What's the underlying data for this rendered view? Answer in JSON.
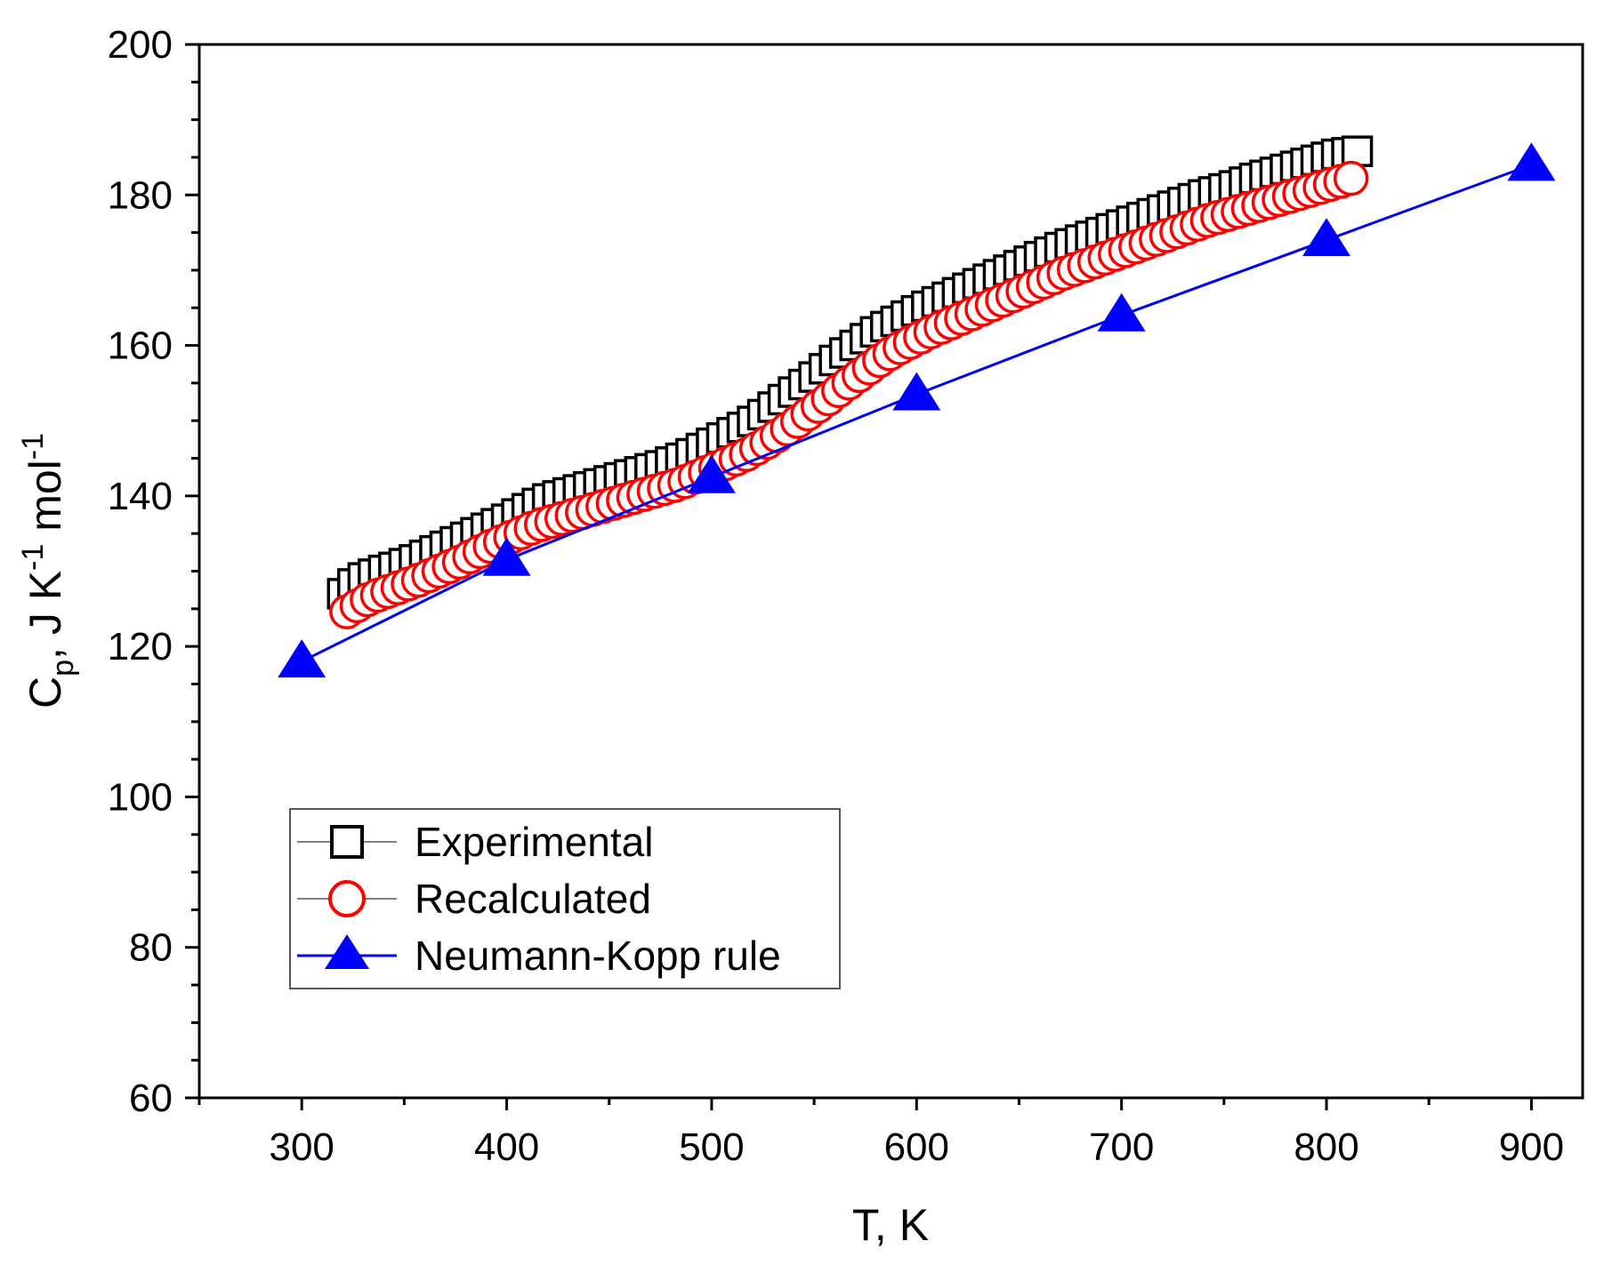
{
  "chart_data": {
    "type": "line",
    "title": "",
    "xlabel": "T, K",
    "ylabel": {
      "base": "C",
      "subscript": "p",
      "rest1": ", J K",
      "sup1": "-1",
      "rest2": " mol",
      "sup2": "-1"
    },
    "xlim": [
      250,
      925
    ],
    "ylim": [
      60,
      200
    ],
    "x_ticks": [
      300,
      400,
      500,
      600,
      700,
      800,
      900
    ],
    "y_ticks": [
      60,
      80,
      100,
      120,
      140,
      160,
      180,
      200
    ],
    "x_tick_labels": [
      "300",
      "400",
      "500",
      "600",
      "700",
      "800",
      "900"
    ],
    "y_tick_labels": [
      "60",
      "80",
      "100",
      "120",
      "140",
      "160",
      "180",
      "200"
    ],
    "grid": false,
    "legend_position": "lower-left",
    "series": [
      {
        "name": "Experimental",
        "marker": "square",
        "color": "#000000",
        "line_color": "#808080",
        "x": [
          320,
          325,
          330,
          335,
          340,
          345,
          350,
          355,
          360,
          365,
          370,
          375,
          380,
          385,
          390,
          395,
          400,
          405,
          410,
          415,
          420,
          425,
          430,
          435,
          440,
          445,
          450,
          455,
          460,
          465,
          470,
          475,
          480,
          485,
          490,
          495,
          500,
          505,
          510,
          515,
          520,
          525,
          530,
          535,
          540,
          545,
          550,
          555,
          560,
          565,
          570,
          575,
          580,
          585,
          590,
          595,
          600,
          605,
          610,
          615,
          620,
          625,
          630,
          635,
          640,
          645,
          650,
          655,
          660,
          665,
          670,
          675,
          680,
          685,
          690,
          695,
          700,
          705,
          710,
          715,
          720,
          725,
          730,
          735,
          740,
          745,
          750,
          755,
          760,
          765,
          770,
          775,
          780,
          785,
          790,
          795,
          800,
          805,
          810,
          815
        ],
        "y": [
          127,
          128.3,
          129.1,
          129.6,
          130.1,
          130.5,
          131,
          131.5,
          132.1,
          132.7,
          133.3,
          133.9,
          134.5,
          135.1,
          135.7,
          136.3,
          136.9,
          137.6,
          138.3,
          139,
          139.6,
          140,
          140.4,
          140.8,
          141.2,
          141.6,
          142,
          142.4,
          142.8,
          143.2,
          143.6,
          144,
          144.5,
          145,
          145.6,
          146.3,
          147,
          147.7,
          148.4,
          149.1,
          149.9,
          150.8,
          151.8,
          152.8,
          153.8,
          154.8,
          155.8,
          156.9,
          158,
          159,
          160,
          160.9,
          161.8,
          162.5,
          163.2,
          163.9,
          164.6,
          165.2,
          165.8,
          166.4,
          167,
          167.6,
          168.2,
          168.8,
          169.4,
          170,
          170.6,
          171.2,
          171.8,
          172.4,
          173,
          173.5,
          174,
          174.5,
          175,
          175.5,
          176,
          176.5,
          177,
          177.5,
          178,
          178.5,
          179,
          179.5,
          180,
          180.4,
          180.8,
          181.2,
          181.7,
          182.2,
          182.6,
          183,
          183.4,
          183.8,
          184.2,
          184.6,
          185,
          185.4,
          185.6,
          185.8
        ]
      },
      {
        "name": "Recalculated",
        "marker": "circle",
        "color": "#ff0000",
        "line_color": "#808080",
        "x": [
          322,
          327,
          332,
          337,
          342,
          347,
          352,
          357,
          362,
          367,
          372,
          377,
          382,
          387,
          392,
          397,
          402,
          407,
          412,
          417,
          422,
          427,
          432,
          437,
          442,
          447,
          452,
          457,
          462,
          467,
          472,
          477,
          482,
          487,
          492,
          497,
          502,
          507,
          512,
          517,
          522,
          527,
          532,
          537,
          542,
          547,
          552,
          557,
          562,
          567,
          572,
          577,
          582,
          587,
          592,
          597,
          602,
          607,
          612,
          617,
          622,
          627,
          632,
          637,
          642,
          647,
          652,
          657,
          662,
          667,
          672,
          677,
          682,
          687,
          692,
          697,
          702,
          707,
          712,
          717,
          722,
          727,
          732,
          737,
          742,
          747,
          752,
          757,
          762,
          767,
          772,
          777,
          782,
          787,
          792,
          797,
          802,
          807,
          812
        ],
        "y": [
          124.6,
          125.4,
          126.2,
          126.8,
          127.3,
          127.8,
          128.3,
          128.8,
          129.4,
          130,
          130.6,
          131.2,
          131.9,
          132.6,
          133.3,
          133.9,
          134.5,
          135.1,
          135.7,
          136.2,
          136.6,
          137,
          137.4,
          137.8,
          138.2,
          138.6,
          139,
          139.4,
          139.8,
          140.2,
          140.6,
          141,
          141.4,
          141.9,
          142.5,
          143.1,
          143.7,
          144.3,
          144.9,
          145.5,
          146.3,
          147.1,
          148,
          148.9,
          149.9,
          150.9,
          151.9,
          152.9,
          154,
          155,
          156,
          157,
          158,
          158.9,
          159.7,
          160.4,
          161.1,
          161.8,
          162.4,
          163,
          163.6,
          164.2,
          164.8,
          165.4,
          166,
          166.6,
          167.2,
          167.8,
          168.4,
          169,
          169.6,
          170.1,
          170.6,
          171.1,
          171.6,
          172.1,
          172.6,
          173.1,
          173.6,
          174.1,
          174.6,
          175.1,
          175.6,
          176.1,
          176.6,
          177,
          177.4,
          177.8,
          178.2,
          178.6,
          179,
          179.4,
          179.8,
          180.2,
          180.6,
          181,
          181.4,
          181.8,
          182.2
        ]
      },
      {
        "name": "Neumann-Kopp rule",
        "marker": "triangle",
        "color": "#0000ff",
        "line_color": "#0000ff",
        "x": [
          300,
          400,
          500,
          600,
          700,
          800,
          900
        ],
        "y": [
          118,
          131.5,
          142.5,
          153.5,
          164,
          174,
          184
        ]
      }
    ]
  }
}
